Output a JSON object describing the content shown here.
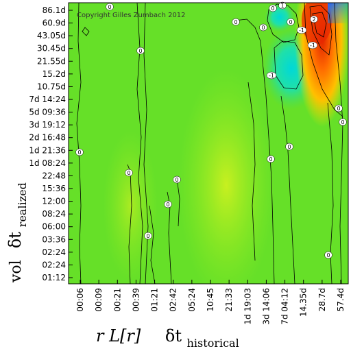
{
  "chart_data": {
    "type": "heatmap",
    "title": "",
    "copyright": "Copyright Gilles Zumbach 2012",
    "xlabel": {
      "left": "r L[r]",
      "symbol": "δt",
      "subscript": "historical"
    },
    "ylabel": {
      "left": "vol",
      "symbol": "δt",
      "subscript": "realized"
    },
    "x_ticks": [
      "00:06",
      "00:09",
      "00:21",
      "00:39",
      "01:21",
      "02:42",
      "05:24",
      "10:45",
      "21:33",
      "1d 19:03",
      "3d 14:06",
      "7d 04:12",
      "14.35d",
      "28.7d",
      "57.4d"
    ],
    "y_ticks": [
      "86.1d",
      "60.9d",
      "43.05d",
      "30.45d",
      "21.55d",
      "15.2d",
      "10.75d",
      "7d 14:24",
      "5d 09:36",
      "3d 19:12",
      "2d 16:48",
      "1d 21:36",
      "1d 08:24",
      "22:48",
      "15:36",
      "12:00",
      "08:24",
      "06:00",
      "03:36",
      "02:24",
      "02:24",
      "01:12"
    ],
    "contour_labels": [
      "0",
      "0",
      "0",
      "0",
      "0",
      "0",
      "0",
      "0",
      "0",
      "0",
      "0",
      "0",
      "0",
      "0",
      "0",
      "0",
      "-1",
      "-1",
      "-1",
      "1",
      "2"
    ],
    "grid": false,
    "colorscale": [
      "#3050ff",
      "#00c8e0",
      "#20e0a0",
      "#40e030",
      "#a0f020",
      "#f0e000",
      "#ff8000",
      "#e02000"
    ]
  }
}
